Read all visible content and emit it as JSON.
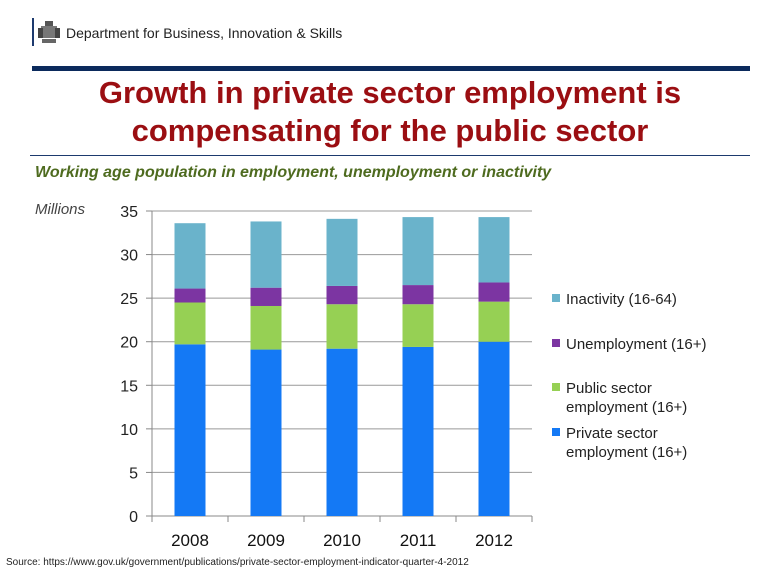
{
  "header": {
    "department": "Department for Business, Innovation & Skills",
    "logo": "royal-coat-of-arms"
  },
  "title": "Growth in private sector employment is compensating for the public sector",
  "subtitle": "Working age population in employment, unemployment or inactivity",
  "source": "Source: https://www.gov.uk/government/publications/private-sector-employment-indicator-quarter-4-2012",
  "chart_data": {
    "type": "bar",
    "stacked": true,
    "categories": [
      "2008",
      "2009",
      "2010",
      "2011",
      "2012"
    ],
    "ylabel": "Millions",
    "ylim": [
      0,
      35
    ],
    "yticks": [
      0,
      5,
      10,
      15,
      20,
      25,
      30,
      35
    ],
    "grid": true,
    "legend_position": "right",
    "series": [
      {
        "name": "Private sector employment (16+)",
        "color": "#1479f5",
        "values": [
          19.7,
          19.1,
          19.2,
          19.4,
          20.0
        ]
      },
      {
        "name": "Public sector employment (16+)",
        "color": "#96d054",
        "values": [
          4.8,
          5.0,
          5.1,
          4.9,
          4.6
        ]
      },
      {
        "name": "Unemployment (16+)",
        "color": "#7c35a2",
        "values": [
          1.6,
          2.1,
          2.1,
          2.2,
          2.2
        ]
      },
      {
        "name": "Inactivity (16-64)",
        "color": "#6ab3cb",
        "values": [
          7.5,
          7.6,
          7.7,
          7.8,
          7.5
        ]
      }
    ]
  }
}
